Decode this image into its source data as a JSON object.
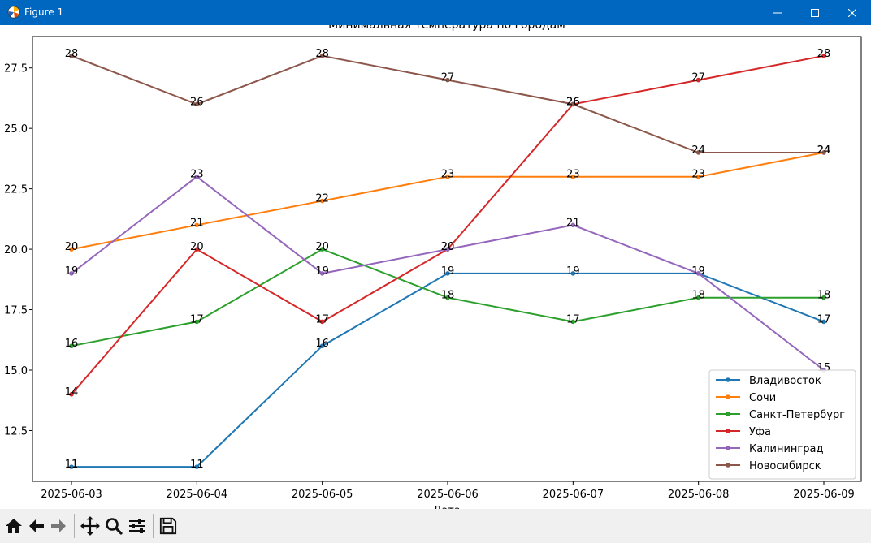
{
  "window": {
    "title": "Figure 1",
    "icon": "matplotlib-icon",
    "controls": [
      "minimize-icon",
      "maximize-icon",
      "close-icon"
    ]
  },
  "toolbar": {
    "buttons": [
      "home-icon",
      "back-icon",
      "forward-icon",
      "pan-icon",
      "zoom-icon",
      "configure-subplots-icon",
      "save-icon"
    ]
  },
  "chart_data": {
    "type": "line",
    "title": "Минимальная температура по городам",
    "xlabel": "Дата",
    "ylabel": "",
    "categories": [
      "2025-06-03",
      "2025-06-04",
      "2025-06-05",
      "2025-06-06",
      "2025-06-07",
      "2025-06-08",
      "2025-06-09"
    ],
    "ylim": [
      10.4,
      28.8
    ],
    "yticks": [
      "12.5",
      "15.0",
      "17.5",
      "20.0",
      "22.5",
      "25.0",
      "27.5"
    ],
    "grid": false,
    "legend": "lower-right",
    "series": [
      {
        "name": "Владивосток",
        "color": "#1f77b4",
        "values": [
          11,
          11,
          16,
          19,
          19,
          19,
          17
        ]
      },
      {
        "name": "Сочи",
        "color": "#ff7f0e",
        "values": [
          20,
          21,
          22,
          23,
          23,
          23,
          24
        ]
      },
      {
        "name": "Санкт-Петербург",
        "color": "#2ca02c",
        "values": [
          16,
          17,
          20,
          18,
          17,
          18,
          18
        ]
      },
      {
        "name": "Уфа",
        "color": "#d62728",
        "values": [
          14,
          20,
          17,
          20,
          26,
          27,
          28
        ]
      },
      {
        "name": "Калининград",
        "color": "#9467bd",
        "values": [
          19,
          23,
          19,
          20,
          21,
          19,
          15
        ]
      },
      {
        "name": "Новосибирск",
        "color": "#8c564b",
        "values": [
          28,
          26,
          28,
          27,
          26,
          24,
          24
        ]
      }
    ]
  }
}
